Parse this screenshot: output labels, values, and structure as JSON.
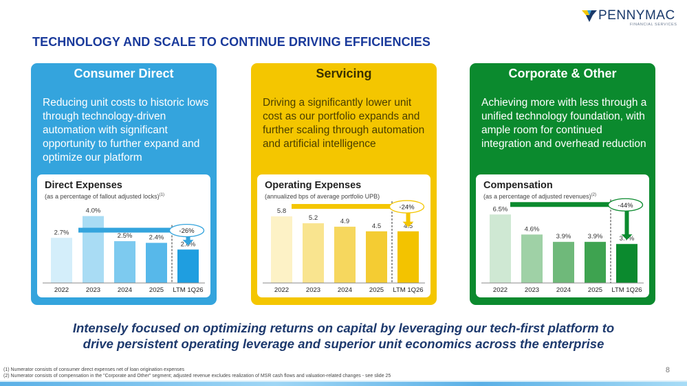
{
  "slide": {
    "brand": "PENNYMAC",
    "brand_sub": "FINANCIAL SERVICES",
    "brand_colors": {
      "navy": "#1a3a6b",
      "yellow": "#f4c600",
      "blue": "#34a4dd",
      "green": "#0b8a2e"
    },
    "title": "TECHNOLOGY AND SCALE TO CONTINUE DRIVING EFFICIENCIES",
    "tagline_line1": "Intensely focused on optimizing returns on capital by leveraging our tech-first platform to",
    "tagline_line2": "drive persistent operating leverage and superior unit economics across the enterprise",
    "footnote1": "(1) Numerator consists of consumer direct expenses net of loan origination expenses",
    "footnote2": "(2) Numerator consists of compensation in the \"Corporate and Other\" segment; adjusted revenue excludes realization of MSR cash flows and valuation-related changes - see slide 25",
    "page_number": "8"
  },
  "panels": [
    {
      "heading": "Consumer Direct",
      "description": "Reducing unit costs to historic lows through technology-driven automation with significant opportunity to further expand and optimize our platform",
      "chart_title": "Direct Expenses",
      "chart_subtitle": "(as a percentage of fallout adjusted locks)",
      "chart_subtitle_sup": "(1)"
    },
    {
      "heading": "Servicing",
      "description": "Driving a significantly lower unit cost as our portfolio expands and further scaling through automation and artificial intelligence",
      "chart_title": "Operating Expenses",
      "chart_subtitle": "(annualized bps of average portfolio UPB)",
      "chart_subtitle_sup": ""
    },
    {
      "heading": "Corporate & Other",
      "description": "Achieving more with less through a unified technology foundation, with ample room for continued integration and overhead reduction",
      "chart_title": "Compensation",
      "chart_subtitle": "(as a percentage of adjusted revenues)",
      "chart_subtitle_sup": "(2)"
    }
  ],
  "chart_data": [
    {
      "type": "bar",
      "title": "Direct Expenses",
      "subtitle": "(as a percentage of fallout adjusted locks)(1)",
      "categories": [
        "2022",
        "2023",
        "2024",
        "2025",
        "LTM 1Q26"
      ],
      "values": [
        2.7,
        4.0,
        2.5,
        2.4,
        2.0
      ],
      "labels": [
        "2.7%",
        "4.0%",
        "2.5%",
        "2.4%",
        "2.0%"
      ],
      "colors": [
        "#d4eefa",
        "#a9dcf4",
        "#7dcaef",
        "#57b8ea",
        "#1f9ee0"
      ],
      "ylim": [
        0,
        4.6
      ],
      "change_label": "-26%",
      "arrow_color": "#34a4dd"
    },
    {
      "type": "bar",
      "title": "Operating Expenses",
      "subtitle": "(annualized bps of average portfolio UPB)",
      "categories": [
        "2022",
        "2023",
        "2024",
        "2025",
        "LTM 1Q26"
      ],
      "values": [
        5.8,
        5.2,
        4.9,
        4.5,
        4.5
      ],
      "labels": [
        "5.8",
        "5.2",
        "4.9",
        "4.5",
        "4.5"
      ],
      "colors": [
        "#fdf2c6",
        "#f9e48f",
        "#f6d75e",
        "#f4cc33",
        "#f3c300"
      ],
      "ylim": [
        0,
        6.7
      ],
      "change_label": "-24%",
      "arrow_color": "#f4c600"
    },
    {
      "type": "bar",
      "title": "Compensation",
      "subtitle": "(as a percentage of adjusted revenues)(2)",
      "categories": [
        "2022",
        "2023",
        "2024",
        "2025",
        "LTM 1Q26"
      ],
      "values": [
        6.5,
        4.6,
        3.9,
        3.9,
        3.7
      ],
      "labels": [
        "6.5%",
        "4.6%",
        "3.9%",
        "3.9%",
        "3.7%"
      ],
      "colors": [
        "#cfe8d3",
        "#9fd1a6",
        "#6fb97a",
        "#3ea350",
        "#0b8a2e"
      ],
      "ylim": [
        0,
        7.3
      ],
      "change_label": "-44%",
      "arrow_color": "#0b8a2e"
    }
  ]
}
